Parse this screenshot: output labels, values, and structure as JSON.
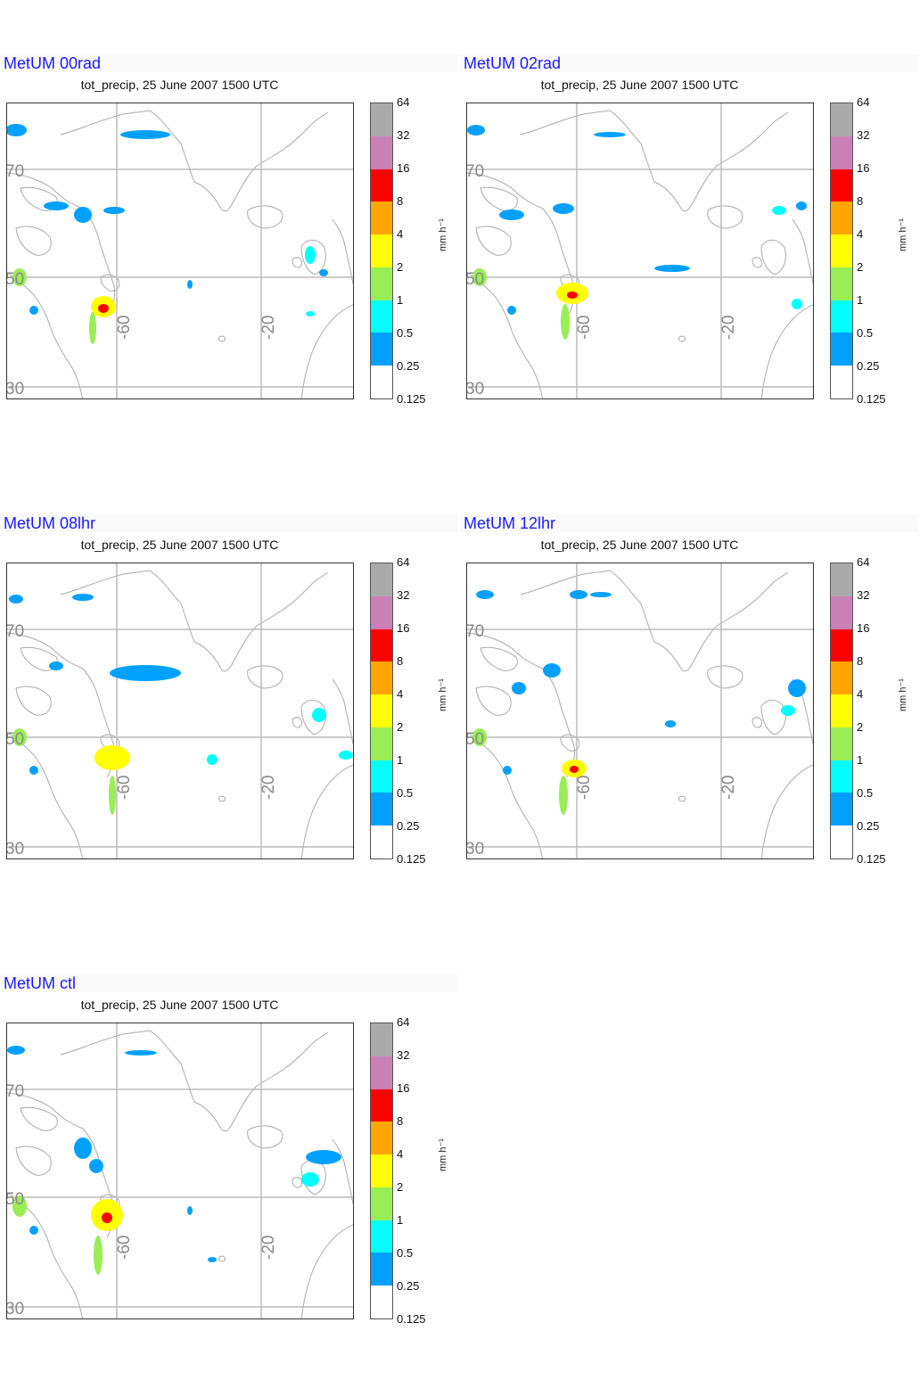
{
  "subtitle": "tot_precip, 25 June 2007 1500 UTC",
  "panels": [
    {
      "title": "MetUM 00rad"
    },
    {
      "title": "MetUM 02rad"
    },
    {
      "title": "MetUM 08lhr"
    },
    {
      "title": "MetUM 12lhr"
    },
    {
      "title": "MetUM ctl"
    }
  ],
  "colorbar": {
    "labels": [
      "64",
      "32",
      "16",
      "8",
      "4",
      "2",
      "1",
      "0.5",
      "0.25",
      "0.125"
    ],
    "colors": [
      "#aaaaaa",
      "#cc80b8",
      "#ff0000",
      "#ffa500",
      "#ffff00",
      "#99ee55",
      "#00ffff",
      "#00a0ff",
      "#ffffff"
    ],
    "unit": "mm h⁻¹"
  },
  "map": {
    "lat_labels": [
      "70",
      "50",
      "30"
    ],
    "lon_labels": [
      "-60",
      "-20"
    ],
    "gridline_color": "#bbbbbb",
    "coastline_color": "#aaaaaa"
  }
}
